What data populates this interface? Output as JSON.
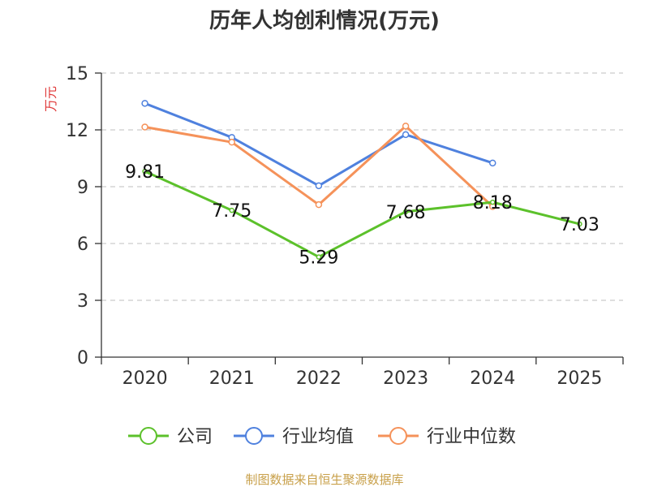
{
  "chart_data": {
    "type": "line",
    "title": "历年人均创利情况(万元)",
    "ylabel": "万元",
    "xlabel": "",
    "categories": [
      "2020",
      "2021",
      "2022",
      "2023",
      "2024",
      "2025"
    ],
    "ylim": [
      0,
      15
    ],
    "yticks": [
      "0",
      "3",
      "6",
      "9",
      "12",
      "15"
    ],
    "grid": true,
    "legend_position": "bottom",
    "series": [
      {
        "name": "公司",
        "color": "#5cc12b",
        "values": [
          9.81,
          7.75,
          5.29,
          7.68,
          8.18,
          7.03
        ],
        "labels": [
          "9.81",
          "7.75",
          "5.29",
          "7.68",
          "8.18",
          "7.03"
        ]
      },
      {
        "name": "行业均值",
        "color": "#4f81de",
        "values": [
          13.4,
          11.6,
          9.05,
          11.75,
          10.25,
          null
        ]
      },
      {
        "name": "行业中位数",
        "color": "#f5925a",
        "values": [
          12.15,
          11.35,
          8.05,
          12.2,
          7.95,
          null
        ]
      }
    ]
  },
  "source": "制图数据来自恒生聚源数据库",
  "colors": {
    "title": "#333333",
    "ylabel": "#e03a3a",
    "source": "#c8a04a",
    "grid": "#cccccc",
    "axis": "#333333"
  }
}
